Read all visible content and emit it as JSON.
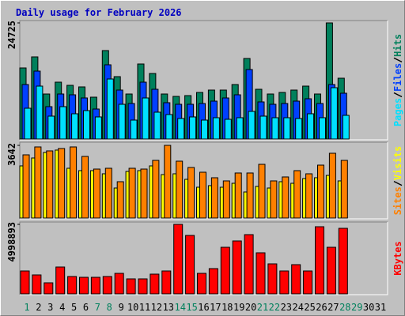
{
  "chart_data": [
    {
      "type": "bar",
      "title": "Daily usage for February 2026",
      "ylim": [
        0,
        24725
      ],
      "yticks": [
        24725
      ],
      "series": [
        {
          "name": "Hits",
          "color": "#00805c",
          "values": [
            15138,
            17493,
            9587,
            12110,
            11437,
            11101,
            8914,
            18838,
            13288,
            9587,
            15979,
            13960,
            9587,
            9083,
            9251,
            9924,
            10428,
            10428,
            11606,
            17156,
            10597,
            9587,
            9924,
            10428,
            11269,
            9587,
            24725,
            12951,
            null,
            null,
            null
          ]
        },
        {
          "name": "Files",
          "color": "#0040ff",
          "values": [
            11606,
            14465,
            6896,
            9587,
            9419,
            8746,
            6392,
            15811,
            10428,
            7569,
            12110,
            10597,
            7737,
            7401,
            7401,
            7569,
            8074,
            8746,
            9419,
            14802,
            7905,
            7401,
            7569,
            8074,
            8578,
            7569,
            11606,
            9755,
            null,
            null,
            null
          ]
        },
        {
          "name": "Pages",
          "color": "#00e0ff",
          "values": [
            6560,
            11269,
            4878,
            6896,
            5382,
            6055,
            4710,
            12783,
            7401,
            4037,
            8746,
            5719,
            5214,
            4373,
            4710,
            4037,
            4541,
            4205,
            4541,
            5887,
            4878,
            4541,
            4541,
            4373,
            5382,
            4541,
            10933,
            5046,
            null,
            null,
            null
          ]
        }
      ]
    },
    {
      "type": "bar",
      "ylim": [
        0,
        3642
      ],
      "yticks": [
        3642
      ],
      "series": [
        {
          "name": "Visits",
          "color": "#ffff00",
          "values": [
            2613,
            3009,
            3286,
            3405,
            2494,
            2375,
            2375,
            2217,
            1504,
            2336,
            2375,
            2613,
            2177,
            2217,
            1940,
            1544,
            1623,
            1544,
            1742,
            1306,
            1584,
            1504,
            1821,
            1742,
            1979,
            2019,
            2138,
            1861,
            null,
            null,
            null
          ]
        },
        {
          "name": "Sites",
          "color": "#ff8000",
          "values": [
            3167,
            3563,
            3365,
            3484,
            3563,
            3088,
            2454,
            2494,
            1821,
            2494,
            2454,
            2890,
            3642,
            2850,
            2534,
            2296,
            2019,
            1861,
            2257,
            2257,
            2692,
            1861,
            2059,
            2375,
            2217,
            2652,
            3246,
            2890,
            null,
            null,
            null
          ]
        }
      ]
    },
    {
      "type": "bar",
      "ylim": [
        0,
        4998893
      ],
      "yticks": [
        4998893
      ],
      "categories": [
        "1",
        "2",
        "3",
        "4",
        "5",
        "6",
        "7",
        "8",
        "9",
        "10",
        "11",
        "12",
        "13",
        "14",
        "15",
        "16",
        "17",
        "18",
        "19",
        "20",
        "21",
        "22",
        "23",
        "24",
        "25",
        "26",
        "27",
        "28",
        "29",
        "30",
        "31"
      ],
      "category_colors": [
        "#00805c",
        "#000000",
        "#000000",
        "#000000",
        "#000000",
        "#000000",
        "#00805c",
        "#00805c",
        "#000000",
        "#000000",
        "#000000",
        "#000000",
        "#000000",
        "#00805c",
        "#00805c",
        "#000000",
        "#000000",
        "#000000",
        "#000000",
        "#000000",
        "#00805c",
        "#00805c",
        "#000000",
        "#000000",
        "#000000",
        "#000000",
        "#000000",
        "#00805c",
        "#00805c",
        "#000000",
        "#000000"
      ],
      "series": [
        {
          "name": "KBytes",
          "color": "#ff0000",
          "values": [
            1647374,
            1363344,
            795284,
            1931404,
            1249732,
            1192926,
            1192926,
            1249732,
            1476956,
            1079314,
            1079314,
            1420150,
            1647374,
            4998893,
            4203644,
            1476956,
            1817792,
            3351554,
            3806002,
            4260450,
            2953912,
            2158628,
            1647374,
            2101822,
            1647374,
            4828510,
            3351554,
            4714898,
            null,
            null,
            null
          ]
        }
      ]
    }
  ]
}
